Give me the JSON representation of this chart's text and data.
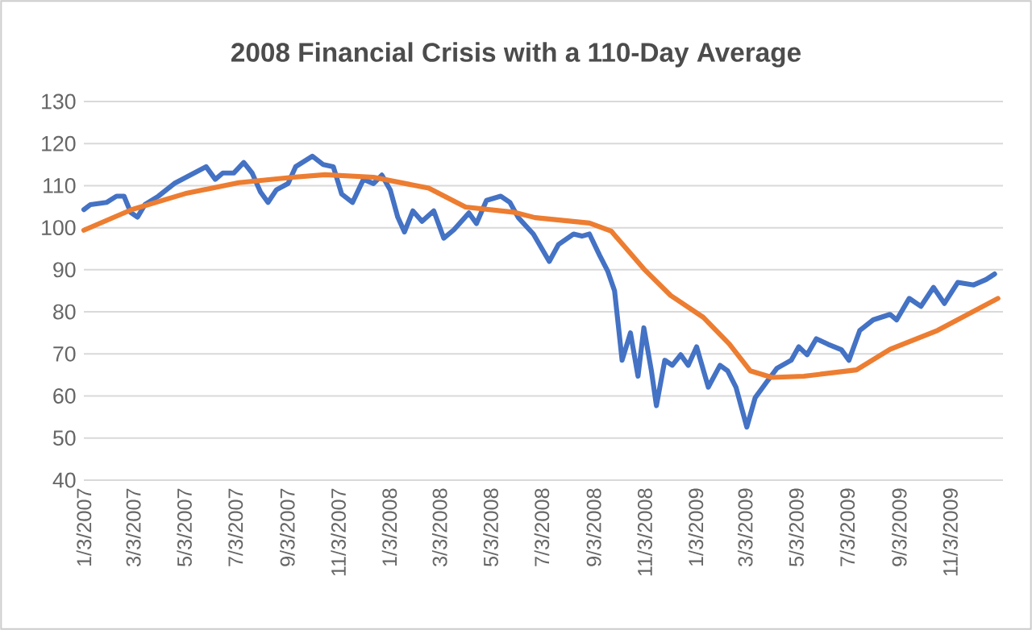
{
  "chart_data": {
    "type": "line",
    "title": "2008 Financial Crisis with a 110-Day Average",
    "grid": "y",
    "line_style": "solid",
    "xlim": [
      "2007-01-03",
      "2010-01-05"
    ],
    "ylim": [
      40,
      130
    ],
    "yticks": [
      40,
      50,
      60,
      70,
      80,
      90,
      100,
      110,
      120,
      130
    ],
    "xticks": [
      {
        "value": "2007-01-03",
        "label": "1/3/2007"
      },
      {
        "value": "2007-03-03",
        "label": "3/3/2007"
      },
      {
        "value": "2007-05-03",
        "label": "5/3/2007"
      },
      {
        "value": "2007-07-03",
        "label": "7/3/2007"
      },
      {
        "value": "2007-09-03",
        "label": "9/3/2007"
      },
      {
        "value": "2007-11-03",
        "label": "11/3/2007"
      },
      {
        "value": "2008-01-03",
        "label": "1/3/2008"
      },
      {
        "value": "2008-03-03",
        "label": "3/3/2008"
      },
      {
        "value": "2008-05-03",
        "label": "5/3/2008"
      },
      {
        "value": "2008-07-03",
        "label": "7/3/2008"
      },
      {
        "value": "2008-09-03",
        "label": "9/3/2008"
      },
      {
        "value": "2008-11-03",
        "label": "11/3/2008"
      },
      {
        "value": "2009-01-03",
        "label": "1/3/2009"
      },
      {
        "value": "2009-03-03",
        "label": "3/3/2009"
      },
      {
        "value": "2009-05-03",
        "label": "5/3/2009"
      },
      {
        "value": "2009-07-03",
        "label": "7/3/2009"
      },
      {
        "value": "2009-09-03",
        "label": "9/3/2009"
      },
      {
        "value": "2009-11-03",
        "label": "11/3/2009"
      }
    ],
    "series": [
      {
        "color": "#4472c4",
        "x": [
          "2007-01-03",
          "2007-01-11",
          "2007-01-30",
          "2007-02-11",
          "2007-02-20",
          "2007-02-28",
          "2007-03-08",
          "2007-03-17",
          "2007-04-02",
          "2007-04-21",
          "2007-05-10",
          "2007-05-29",
          "2007-06-09",
          "2007-06-18",
          "2007-07-01",
          "2007-07-13",
          "2007-07-23",
          "2007-08-02",
          "2007-08-11",
          "2007-08-21",
          "2007-09-04",
          "2007-09-13",
          "2007-10-03",
          "2007-10-16",
          "2007-10-28",
          "2007-11-07",
          "2007-11-20",
          "2007-12-03",
          "2007-12-15",
          "2007-12-25",
          "2008-01-04",
          "2008-01-13",
          "2008-01-21",
          "2008-01-31",
          "2008-02-11",
          "2008-02-25",
          "2008-03-08",
          "2008-03-20",
          "2008-04-07",
          "2008-04-16",
          "2008-04-28",
          "2008-05-15",
          "2008-05-26",
          "2008-06-05",
          "2008-06-23",
          "2008-07-12",
          "2008-07-23",
          "2008-08-10",
          "2008-08-20",
          "2008-08-29",
          "2008-09-10",
          "2008-09-20",
          "2008-09-28",
          "2008-10-07",
          "2008-10-17",
          "2008-10-26",
          "2008-11-02",
          "2008-11-11",
          "2008-11-17",
          "2008-11-27",
          "2008-12-06",
          "2008-12-16",
          "2008-12-25",
          "2009-01-04",
          "2009-01-18",
          "2009-02-01",
          "2009-02-10",
          "2009-02-20",
          "2009-03-05",
          "2009-03-15",
          "2009-03-29",
          "2009-04-10",
          "2009-04-27",
          "2009-05-06",
          "2009-05-16",
          "2009-05-27",
          "2009-06-10",
          "2009-06-26",
          "2009-07-05",
          "2009-07-18",
          "2009-08-03",
          "2009-08-23",
          "2009-08-31",
          "2009-09-15",
          "2009-09-29",
          "2009-10-14",
          "2009-10-27",
          "2009-11-12",
          "2009-12-01",
          "2009-12-16",
          "2009-12-26"
        ],
        "values": [
          104.3,
          105.5,
          106,
          107.5,
          107.5,
          103.6,
          102.5,
          105.5,
          107.5,
          110.5,
          112.5,
          114.5,
          111.5,
          113,
          113,
          115.5,
          113,
          108.5,
          106,
          109,
          110.5,
          114.5,
          117,
          115,
          114.5,
          108,
          106,
          111.5,
          110.5,
          112.5,
          109,
          102.5,
          99,
          104,
          101.5,
          104,
          97.5,
          99.5,
          103.5,
          101,
          106.5,
          107.5,
          106,
          102.4,
          98.5,
          92,
          96,
          98.5,
          98,
          98.5,
          93.5,
          89.6,
          85,
          68.5,
          75,
          64.7,
          76.2,
          66,
          57.7,
          68.5,
          67.3,
          69.8,
          67.3,
          71.7,
          62.1,
          67.3,
          66,
          62.1,
          52.6,
          59.6,
          63.4,
          66.6,
          68.5,
          71.7,
          69.8,
          73.6,
          72.3,
          71,
          68.5,
          75.6,
          78.1,
          79.4,
          78.1,
          83.2,
          81.3,
          85.8,
          82,
          87,
          86.4,
          87.7,
          89
        ]
      },
      {
        "color": "#ed7d31",
        "x": [
          "2007-01-03",
          "2007-03-01",
          "2007-05-04",
          "2007-07-07",
          "2007-09-10",
          "2007-10-18",
          "2007-12-15",
          "2008-02-19",
          "2008-04-03",
          "2008-05-30",
          "2008-06-25",
          "2008-08-29",
          "2008-09-24",
          "2008-11-02",
          "2008-12-04",
          "2009-01-12",
          "2009-02-12",
          "2009-03-09",
          "2009-04-04",
          "2009-05-12",
          "2009-07-14",
          "2009-08-23",
          "2009-10-19",
          "2009-12-30"
        ],
        "values": [
          99.4,
          104.3,
          108.1,
          110.7,
          112,
          112.6,
          112,
          109.4,
          104.9,
          103.7,
          102.4,
          101.1,
          99.2,
          90.2,
          83.9,
          78.7,
          72.4,
          66,
          64.4,
          64.7,
          66.2,
          71.1,
          75.6,
          83.2
        ]
      }
    ]
  }
}
